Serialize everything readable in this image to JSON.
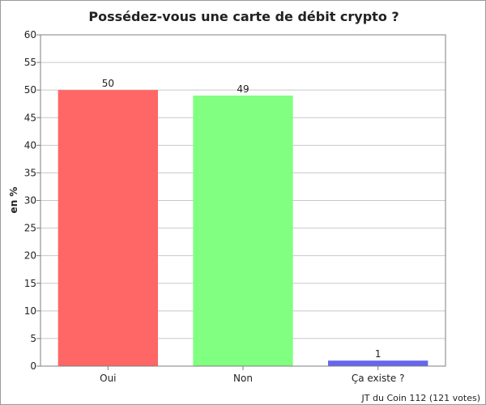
{
  "chart_data": {
    "type": "bar",
    "title": "Possédez-vous une carte de débit crypto ?",
    "xlabel": "",
    "ylabel": "en %",
    "categories": [
      "Oui",
      "Non",
      "Ça existe ?"
    ],
    "values": [
      50,
      49,
      1
    ],
    "data_labels": [
      "50",
      "49",
      "1"
    ],
    "colors": [
      "#ff6666",
      "#80ff80",
      "#6666ee"
    ],
    "ylim": [
      0,
      60
    ],
    "yticks": [
      0,
      5,
      10,
      15,
      20,
      25,
      30,
      35,
      40,
      45,
      50,
      55,
      60
    ],
    "grid": true,
    "legend": "none",
    "footer": "JT du Coin 112 (121 votes)"
  }
}
